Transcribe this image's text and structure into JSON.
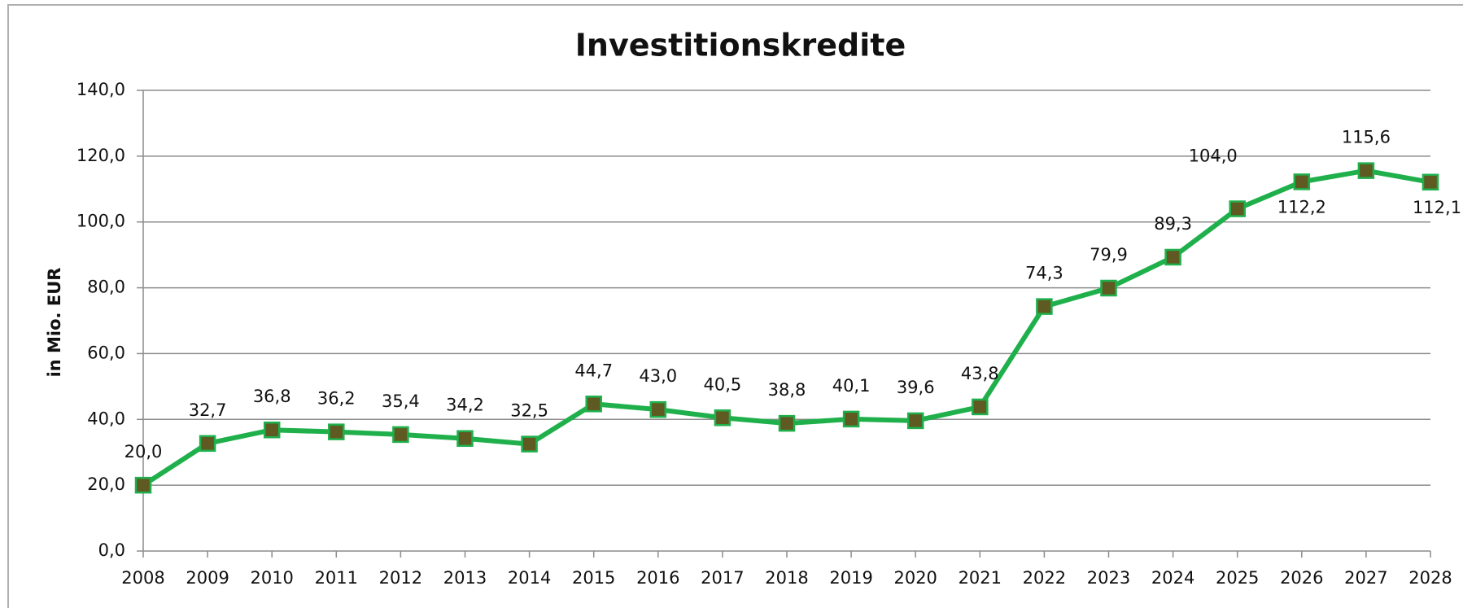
{
  "chart_data": {
    "type": "line",
    "title": "Investitionskredite",
    "y_label": "in Mio. EUR",
    "categories": [
      "2008",
      "2009",
      "2010",
      "2011",
      "2012",
      "2013",
      "2014",
      "2015",
      "2016",
      "2017",
      "2018",
      "2019",
      "2020",
      "2021",
      "2022",
      "2023",
      "2024",
      "2025",
      "2026",
      "2027",
      "2028"
    ],
    "series": [
      {
        "name": "Investitionskredite",
        "color": "#1fb04b",
        "marker_color": "#5e5a22",
        "values": [
          20.0,
          32.7,
          36.8,
          36.2,
          35.4,
          34.2,
          32.5,
          44.7,
          43.0,
          40.5,
          38.8,
          40.1,
          39.6,
          43.8,
          74.3,
          79.9,
          89.3,
          104.0,
          112.2,
          115.6,
          112.1
        ],
        "value_labels": [
          "20,0",
          "32,7",
          "36,8",
          "36,2",
          "35,4",
          "34,2",
          "32,5",
          "44,7",
          "43,0",
          "40,5",
          "38,8",
          "40,1",
          "39,6",
          "43,8",
          "74,3",
          "79,9",
          "89,3",
          "104,0",
          "112,2",
          "115,6",
          "112,1"
        ]
      }
    ],
    "ylim": [
      0,
      140
    ],
    "yticks": [
      {
        "value": 0,
        "label": "0,0"
      },
      {
        "value": 20,
        "label": "20,0"
      },
      {
        "value": 40,
        "label": "40,0"
      },
      {
        "value": 60,
        "label": "60,0"
      },
      {
        "value": 80,
        "label": "80,0"
      },
      {
        "value": 100,
        "label": "100,0"
      },
      {
        "value": 120,
        "label": "120,0"
      },
      {
        "value": 140,
        "label": "140,0"
      }
    ],
    "grid": true
  }
}
